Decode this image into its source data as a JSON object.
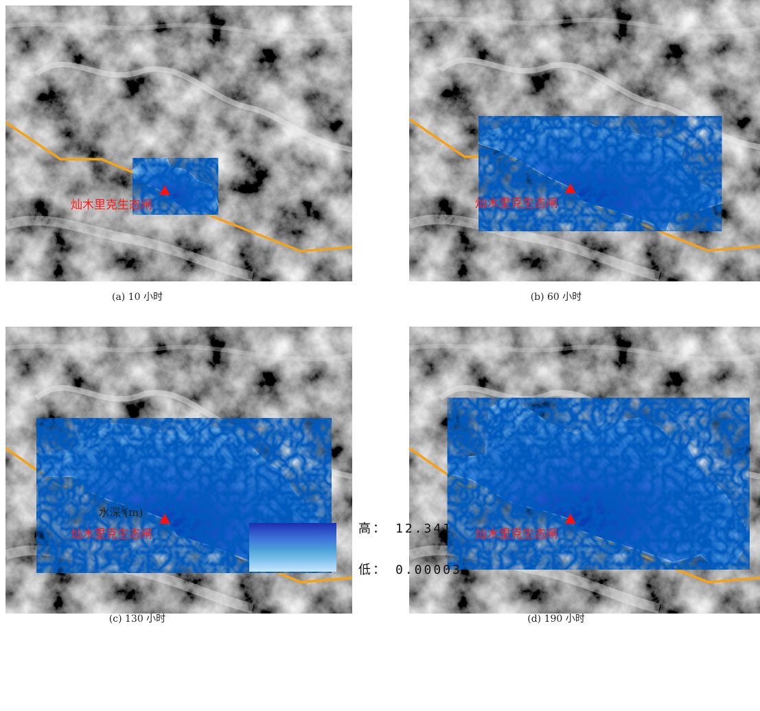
{
  "panels": [
    {
      "caption": "(a) 10 小时",
      "site_label": "灿木里克生态闸"
    },
    {
      "caption": "(b) 60 小时",
      "site_label": "灿木里克生态闸"
    },
    {
      "caption": "(c) 130 小时",
      "site_label": "灿木里克生态闸"
    },
    {
      "caption": "(d) 190 小时",
      "site_label": "灿木里克生态闸"
    }
  ],
  "legend": {
    "title": "水深 (m)",
    "high_label": "高：",
    "high_value": "12.341",
    "low_label": "低：",
    "low_value": "0.00003"
  }
}
